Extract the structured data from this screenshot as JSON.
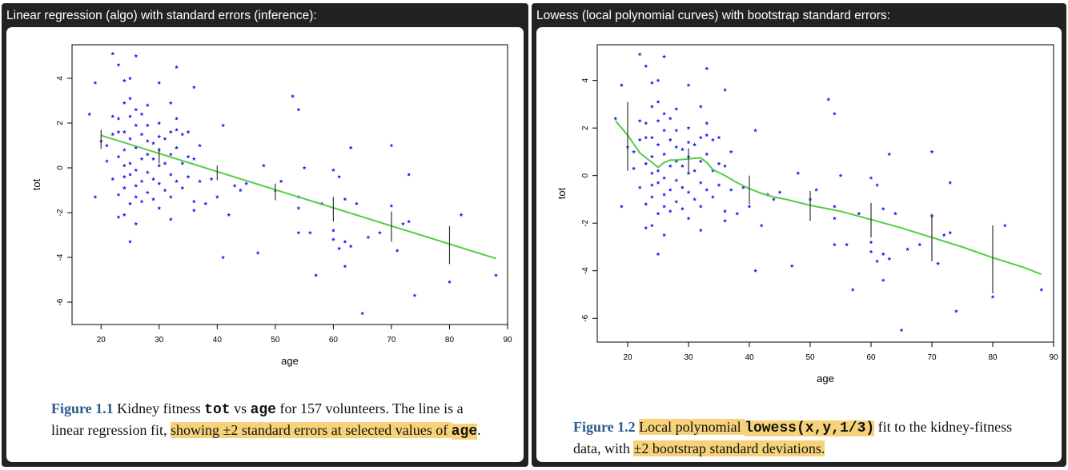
{
  "panels": [
    {
      "title": "Linear regression (algo) with standard errors (inference):",
      "caption": {
        "figure_label": "Figure 1.1",
        "text_1": " Kidney fitness ",
        "code_1": "tot",
        "text_2": " vs ",
        "code_2": "age",
        "text_3": " for 157 volunteers. The line is a linear regression fit, ",
        "highlight_1": "showing ±2 standard errors at selected values of ",
        "highlight_code": "age",
        "text_4": "."
      }
    },
    {
      "title": "Lowess (local polynomial curves) with bootstrap standard errors:",
      "caption": {
        "figure_label": "Figure 1.2",
        "text_1": " ",
        "highlight_1": "Local polynomial ",
        "highlight_code": "lowess(x,y,1/3)",
        "text_2": " fit to the kidney-fitness data, with ",
        "highlight_2": "±2 bootstrap standard deviations."
      }
    }
  ],
  "chart_data": [
    {
      "type": "scatter",
      "xlabel": "age",
      "ylabel": "tot",
      "xlim": [
        15,
        90
      ],
      "ylim": [
        -7,
        5.5
      ],
      "x_ticks": [
        20,
        30,
        40,
        50,
        60,
        70,
        80,
        90
      ],
      "y_ticks": [
        -6,
        -4,
        -2,
        0,
        2,
        4
      ],
      "point_color": "#2222ee",
      "fit_color": "#55cc44",
      "fit": {
        "name": "",
        "x": [
          20,
          88
        ],
        "y": [
          1.45,
          -4.05
        ]
      },
      "error_bars": [
        {
          "x": 20,
          "low": 0.85,
          "high": 1.7
        },
        {
          "x": 30,
          "low": 0.2,
          "high": 0.9
        },
        {
          "x": 40,
          "low": -0.55,
          "high": 0.1
        },
        {
          "x": 50,
          "low": -1.45,
          "high": -0.7
        },
        {
          "x": 60,
          "low": -2.4,
          "high": -1.3
        },
        {
          "x": 70,
          "low": -3.3,
          "high": -1.95
        },
        {
          "x": 80,
          "low": -4.3,
          "high": -2.6
        }
      ],
      "points": [
        [
          19,
          3.8
        ],
        [
          18,
          2.4
        ],
        [
          19,
          -1.3
        ],
        [
          20,
          1.2
        ],
        [
          21,
          1.0
        ],
        [
          21,
          0.3
        ],
        [
          22,
          5.1
        ],
        [
          22,
          2.3
        ],
        [
          22,
          1.5
        ],
        [
          22,
          -0.5
        ],
        [
          23,
          4.6
        ],
        [
          23,
          2.2
        ],
        [
          23,
          1.6
        ],
        [
          23,
          0.5
        ],
        [
          23,
          -1.2
        ],
        [
          23,
          -2.2
        ],
        [
          24,
          3.9
        ],
        [
          24,
          2.9
        ],
        [
          24,
          1.6
        ],
        [
          24,
          0.8
        ],
        [
          24,
          0.1
        ],
        [
          24,
          -0.4
        ],
        [
          24,
          -0.9
        ],
        [
          24,
          -2.1
        ],
        [
          25,
          4.0
        ],
        [
          25,
          3.1
        ],
        [
          25,
          2.3
        ],
        [
          25,
          1.3
        ],
        [
          25,
          0.2
        ],
        [
          25,
          -0.3
        ],
        [
          25,
          -1.6
        ],
        [
          25,
          -3.3
        ],
        [
          26,
          5.0
        ],
        [
          26,
          2.6
        ],
        [
          26,
          1.9
        ],
        [
          26,
          0.9
        ],
        [
          26,
          -0.1
        ],
        [
          26,
          -0.8
        ],
        [
          26,
          -1.3
        ],
        [
          26,
          -2.5
        ],
        [
          27,
          2.4
        ],
        [
          27,
          1.5
        ],
        [
          27,
          0.4
        ],
        [
          27,
          -0.6
        ],
        [
          27,
          -1.5
        ],
        [
          28,
          2.8
        ],
        [
          28,
          1.9
        ],
        [
          28,
          1.2
        ],
        [
          28,
          0.6
        ],
        [
          28,
          -0.2
        ],
        [
          28,
          -1.1
        ],
        [
          29,
          1.1
        ],
        [
          29,
          0.4
        ],
        [
          29,
          -0.5
        ],
        [
          29,
          -1.4
        ],
        [
          30,
          3.8
        ],
        [
          30,
          2.0
        ],
        [
          30,
          1.4
        ],
        [
          30,
          0.8
        ],
        [
          30,
          0.1
        ],
        [
          30,
          -0.7
        ],
        [
          30,
          -1.8
        ],
        [
          31,
          1.3
        ],
        [
          31,
          0.2
        ],
        [
          31,
          -1.0
        ],
        [
          32,
          2.9
        ],
        [
          32,
          1.6
        ],
        [
          32,
          0.6
        ],
        [
          32,
          -0.3
        ],
        [
          32,
          -1.3
        ],
        [
          32,
          -2.3
        ],
        [
          33,
          4.5
        ],
        [
          33,
          2.2
        ],
        [
          33,
          1.7
        ],
        [
          33,
          0.9
        ],
        [
          33,
          -0.6
        ],
        [
          34,
          1.5
        ],
        [
          34,
          0.2
        ],
        [
          34,
          -0.9
        ],
        [
          35,
          1.6
        ],
        [
          35,
          0.5
        ],
        [
          35,
          -0.4
        ],
        [
          36,
          3.6
        ],
        [
          36,
          0.4
        ],
        [
          36,
          -1.5
        ],
        [
          36,
          -1.9
        ],
        [
          37,
          1.0
        ],
        [
          37,
          -0.6
        ],
        [
          38,
          -1.6
        ],
        [
          39,
          -0.5
        ],
        [
          40,
          -1.3
        ],
        [
          41,
          1.9
        ],
        [
          41,
          -4.0
        ],
        [
          42,
          -2.1
        ],
        [
          43,
          -0.8
        ],
        [
          44,
          -1.0
        ],
        [
          45,
          -0.7
        ],
        [
          47,
          -3.8
        ],
        [
          48,
          0.1
        ],
        [
          50,
          -1.0
        ],
        [
          51,
          -0.6
        ],
        [
          53,
          3.2
        ],
        [
          54,
          2.6
        ],
        [
          54,
          -1.3
        ],
        [
          54,
          -1.8
        ],
        [
          54,
          -2.9
        ],
        [
          55,
          0.0
        ],
        [
          56,
          -2.9
        ],
        [
          57,
          -4.8
        ],
        [
          58,
          -1.6
        ],
        [
          60,
          -0.1
        ],
        [
          60,
          -2.8
        ],
        [
          60,
          -3.2
        ],
        [
          61,
          -0.4
        ],
        [
          61,
          -3.6
        ],
        [
          62,
          -1.4
        ],
        [
          62,
          -3.3
        ],
        [
          62,
          -4.4
        ],
        [
          63,
          0.9
        ],
        [
          63,
          -3.5
        ],
        [
          64,
          -1.6
        ],
        [
          65,
          -6.5
        ],
        [
          66,
          -3.1
        ],
        [
          68,
          -2.9
        ],
        [
          70,
          1.0
        ],
        [
          70,
          -1.7
        ],
        [
          71,
          -3.7
        ],
        [
          72,
          -2.5
        ],
        [
          73,
          -0.3
        ],
        [
          73,
          -2.4
        ],
        [
          74,
          -5.7
        ],
        [
          80,
          -5.1
        ],
        [
          82,
          -2.1
        ],
        [
          88,
          -4.8
        ]
      ]
    },
    {
      "type": "scatter",
      "xlabel": "age",
      "ylabel": "tot",
      "xlim": [
        15,
        90
      ],
      "ylim": [
        -7,
        5.5
      ],
      "x_ticks": [
        20,
        30,
        40,
        50,
        60,
        70,
        80,
        90
      ],
      "y_ticks": [
        -6,
        -4,
        -2,
        0,
        2,
        4
      ],
      "point_color": "#2222ee",
      "fit_color": "#55cc44",
      "fit": {
        "name": "",
        "x": [
          18,
          20,
          22,
          24,
          25,
          26,
          27,
          28,
          30,
          32,
          33,
          34,
          36,
          38,
          40,
          42,
          44,
          46,
          50,
          55,
          60,
          65,
          70,
          75,
          80,
          85,
          88
        ],
        "y": [
          2.3,
          1.7,
          0.95,
          0.55,
          0.35,
          0.55,
          0.65,
          0.65,
          0.7,
          0.75,
          0.55,
          0.25,
          0.0,
          -0.3,
          -0.55,
          -0.75,
          -0.9,
          -1.0,
          -1.25,
          -1.5,
          -1.85,
          -2.2,
          -2.6,
          -3.0,
          -3.45,
          -3.85,
          -4.15
        ]
      },
      "error_bars": [
        {
          "x": 20,
          "low": 0.2,
          "high": 3.1
        },
        {
          "x": 30,
          "low": 0.05,
          "high": 1.15
        },
        {
          "x": 40,
          "low": -1.2,
          "high": 0.0
        },
        {
          "x": 50,
          "low": -1.9,
          "high": -0.65
        },
        {
          "x": 60,
          "low": -2.6,
          "high": -1.15
        },
        {
          "x": 70,
          "low": -3.6,
          "high": -1.6
        },
        {
          "x": 80,
          "low": -4.95,
          "high": -2.1
        }
      ],
      "points": [
        [
          19,
          3.8
        ],
        [
          18,
          2.4
        ],
        [
          19,
          -1.3
        ],
        [
          20,
          1.2
        ],
        [
          21,
          1.0
        ],
        [
          21,
          0.3
        ],
        [
          22,
          5.1
        ],
        [
          22,
          2.3
        ],
        [
          22,
          1.5
        ],
        [
          22,
          -0.5
        ],
        [
          23,
          4.6
        ],
        [
          23,
          2.2
        ],
        [
          23,
          1.6
        ],
        [
          23,
          0.5
        ],
        [
          23,
          -1.2
        ],
        [
          23,
          -2.2
        ],
        [
          24,
          3.9
        ],
        [
          24,
          2.9
        ],
        [
          24,
          1.6
        ],
        [
          24,
          0.8
        ],
        [
          24,
          0.1
        ],
        [
          24,
          -0.4
        ],
        [
          24,
          -0.9
        ],
        [
          24,
          -2.1
        ],
        [
          25,
          4.0
        ],
        [
          25,
          3.1
        ],
        [
          25,
          2.3
        ],
        [
          25,
          1.3
        ],
        [
          25,
          0.2
        ],
        [
          25,
          -0.3
        ],
        [
          25,
          -1.6
        ],
        [
          25,
          -3.3
        ],
        [
          26,
          5.0
        ],
        [
          26,
          2.6
        ],
        [
          26,
          1.9
        ],
        [
          26,
          0.9
        ],
        [
          26,
          -0.1
        ],
        [
          26,
          -0.8
        ],
        [
          26,
          -1.3
        ],
        [
          26,
          -2.5
        ],
        [
          27,
          2.4
        ],
        [
          27,
          1.5
        ],
        [
          27,
          0.4
        ],
        [
          27,
          -0.6
        ],
        [
          27,
          -1.5
        ],
        [
          28,
          2.8
        ],
        [
          28,
          1.9
        ],
        [
          28,
          1.2
        ],
        [
          28,
          0.6
        ],
        [
          28,
          -0.2
        ],
        [
          28,
          -1.1
        ],
        [
          29,
          1.1
        ],
        [
          29,
          0.4
        ],
        [
          29,
          -0.5
        ],
        [
          29,
          -1.4
        ],
        [
          30,
          3.8
        ],
        [
          30,
          2.0
        ],
        [
          30,
          1.4
        ],
        [
          30,
          0.8
        ],
        [
          30,
          0.1
        ],
        [
          30,
          -0.7
        ],
        [
          30,
          -1.8
        ],
        [
          31,
          1.3
        ],
        [
          31,
          0.2
        ],
        [
          31,
          -1.0
        ],
        [
          32,
          2.9
        ],
        [
          32,
          1.6
        ],
        [
          32,
          0.6
        ],
        [
          32,
          -0.3
        ],
        [
          32,
          -1.3
        ],
        [
          32,
          -2.3
        ],
        [
          33,
          4.5
        ],
        [
          33,
          2.2
        ],
        [
          33,
          1.7
        ],
        [
          33,
          0.9
        ],
        [
          33,
          -0.6
        ],
        [
          34,
          1.5
        ],
        [
          34,
          0.2
        ],
        [
          34,
          -0.9
        ],
        [
          35,
          1.6
        ],
        [
          35,
          0.5
        ],
        [
          35,
          -0.4
        ],
        [
          36,
          3.6
        ],
        [
          36,
          0.4
        ],
        [
          36,
          -1.5
        ],
        [
          36,
          -1.9
        ],
        [
          37,
          1.0
        ],
        [
          37,
          -0.6
        ],
        [
          38,
          -1.6
        ],
        [
          39,
          -0.5
        ],
        [
          40,
          -1.3
        ],
        [
          41,
          1.9
        ],
        [
          41,
          -4.0
        ],
        [
          42,
          -2.1
        ],
        [
          43,
          -0.8
        ],
        [
          44,
          -1.0
        ],
        [
          45,
          -0.7
        ],
        [
          47,
          -3.8
        ],
        [
          48,
          0.1
        ],
        [
          50,
          -1.0
        ],
        [
          51,
          -0.6
        ],
        [
          53,
          3.2
        ],
        [
          54,
          2.6
        ],
        [
          54,
          -1.3
        ],
        [
          54,
          -1.8
        ],
        [
          54,
          -2.9
        ],
        [
          55,
          0.0
        ],
        [
          56,
          -2.9
        ],
        [
          57,
          -4.8
        ],
        [
          58,
          -1.6
        ],
        [
          60,
          -0.1
        ],
        [
          60,
          -2.8
        ],
        [
          60,
          -3.2
        ],
        [
          61,
          -0.4
        ],
        [
          61,
          -3.6
        ],
        [
          62,
          -1.4
        ],
        [
          62,
          -3.3
        ],
        [
          62,
          -4.4
        ],
        [
          63,
          0.9
        ],
        [
          63,
          -3.5
        ],
        [
          64,
          -1.6
        ],
        [
          65,
          -6.5
        ],
        [
          66,
          -3.1
        ],
        [
          68,
          -2.9
        ],
        [
          70,
          1.0
        ],
        [
          70,
          -1.7
        ],
        [
          71,
          -3.7
        ],
        [
          72,
          -2.5
        ],
        [
          73,
          -0.3
        ],
        [
          73,
          -2.4
        ],
        [
          74,
          -5.7
        ],
        [
          80,
          -5.1
        ],
        [
          82,
          -2.1
        ],
        [
          88,
          -4.8
        ]
      ]
    }
  ]
}
